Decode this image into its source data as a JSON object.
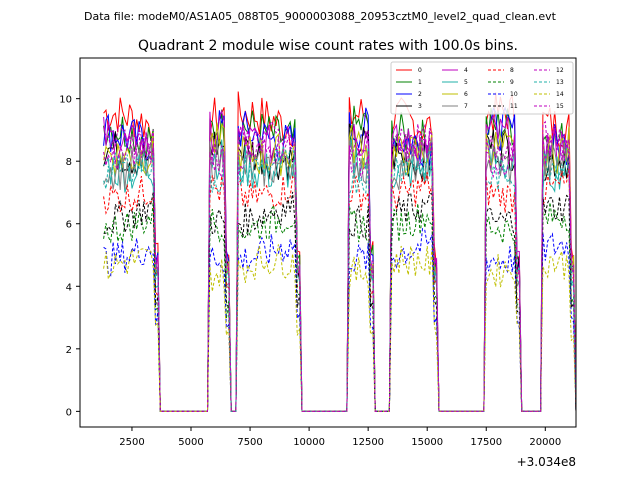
{
  "chart_data": {
    "type": "line",
    "suptitle": "Data file: modeM0/AS1A05_088T05_9000003088_20953cztM0_level2_quad_clean.evt",
    "title": "Quadrant 2 module wise count rates with 100.0s bins.",
    "xlabel": "",
    "ylabel": "",
    "x_offset_label": "+3.034e8",
    "xlim": [
      300,
      21300
    ],
    "ylim": [
      -0.5,
      11.3
    ],
    "x_ticks": [
      2500,
      5000,
      7500,
      10000,
      12500,
      15000,
      17500,
      20000
    ],
    "x_tick_labels": [
      "2500",
      "5000",
      "7500",
      "10000",
      "12500",
      "15000",
      "17500",
      "20000"
    ],
    "y_ticks": [
      0,
      2,
      4,
      6,
      8,
      10
    ],
    "y_tick_labels": [
      "0",
      "2",
      "4",
      "6",
      "8",
      "10"
    ],
    "legend_position": "upper-right",
    "bin_seconds": 100,
    "x_start": 1300,
    "x_end": 21300,
    "on_intervals": [
      [
        1300,
        3600
      ],
      [
        5800,
        6600
      ],
      [
        7000,
        9600
      ],
      [
        11700,
        12700
      ],
      [
        13500,
        15400
      ],
      [
        17500,
        18900
      ],
      [
        19900,
        21200
      ]
    ],
    "series": [
      {
        "name": "0",
        "color": "#ff0000",
        "dash": "solid",
        "level": 9.3
      },
      {
        "name": "1",
        "color": "#008000",
        "dash": "solid",
        "level": 8.9
      },
      {
        "name": "2",
        "color": "#0000ff",
        "dash": "solid",
        "level": 8.8
      },
      {
        "name": "3",
        "color": "#000000",
        "dash": "solid",
        "level": 8.3
      },
      {
        "name": "4",
        "color": "#bf00bf",
        "dash": "solid",
        "level": 8.7
      },
      {
        "name": "5",
        "color": "#20b2aa",
        "dash": "solid",
        "level": 7.9
      },
      {
        "name": "6",
        "color": "#bfbf00",
        "dash": "solid",
        "level": 8.4
      },
      {
        "name": "7",
        "color": "#808080",
        "dash": "solid",
        "level": 8.0
      },
      {
        "name": "8",
        "color": "#ff0000",
        "dash": "dashed",
        "level": 7.1
      },
      {
        "name": "9",
        "color": "#008000",
        "dash": "dashed",
        "level": 6.1
      },
      {
        "name": "10",
        "color": "#0000ff",
        "dash": "dashed",
        "level": 5.1
      },
      {
        "name": "11",
        "color": "#000000",
        "dash": "dashed",
        "level": 6.3
      },
      {
        "name": "12",
        "color": "#bf00bf",
        "dash": "dashed",
        "level": 8.2
      },
      {
        "name": "13",
        "color": "#20b2aa",
        "dash": "dashed",
        "level": 7.7
      },
      {
        "name": "14",
        "color": "#bfbf00",
        "dash": "dashed",
        "level": 4.6
      },
      {
        "name": "15",
        "color": "#bf00bf",
        "dash": "dashed",
        "level": 8.5
      }
    ]
  }
}
